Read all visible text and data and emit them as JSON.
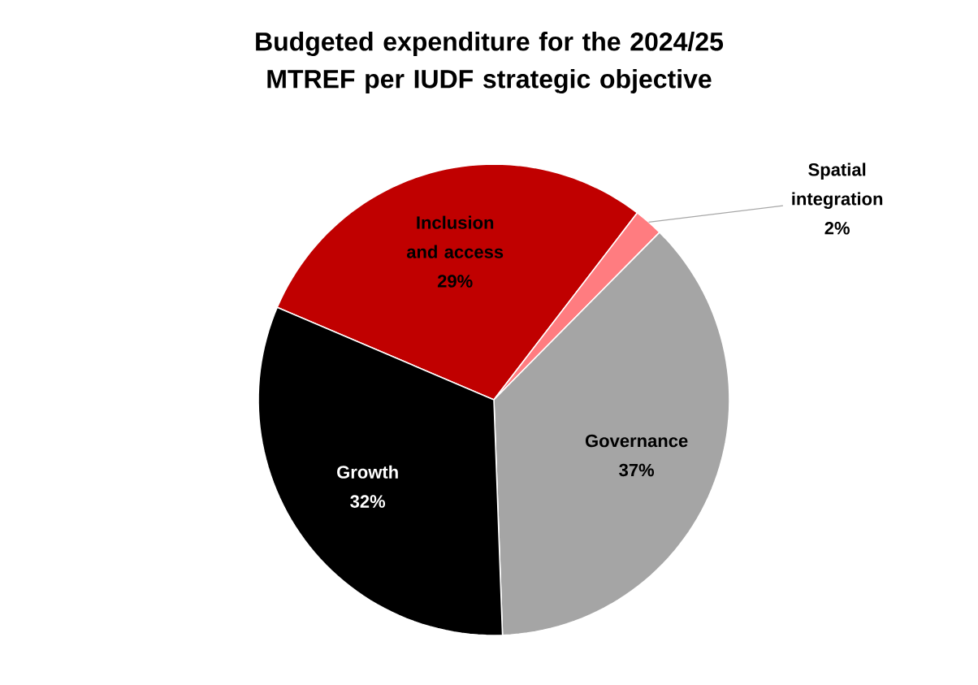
{
  "chart_data": {
    "type": "pie",
    "title": "Budgeted expenditure for the 2024/25 MTREF per IUDF strategic objective",
    "categories": [
      "Inclusion and access",
      "Spatial integration",
      "Governance",
      "Growth"
    ],
    "values": [
      29,
      2,
      37,
      32
    ],
    "value_labels": [
      "29%",
      "2%",
      "37%",
      "32%"
    ],
    "colors": [
      "#c00000",
      "#ff7c80",
      "#a5a5a5",
      "#000000"
    ]
  }
}
